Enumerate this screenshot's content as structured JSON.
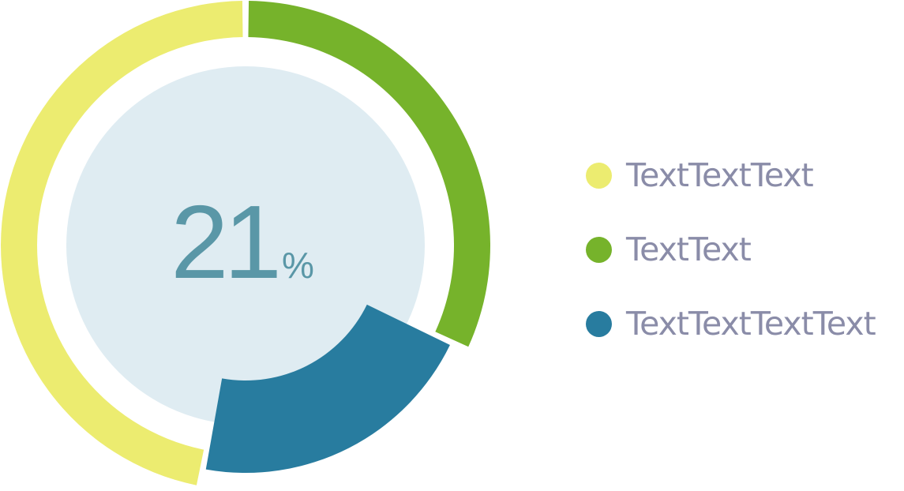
{
  "chart_data": {
    "type": "pie",
    "title": "",
    "center_label": {
      "value": "21",
      "unit": "%"
    },
    "categories": [
      "TextTextText",
      "TextText",
      "TextTextTextText"
    ],
    "values": [
      0.47,
      0.32,
      0.21
    ],
    "colors": [
      "#ecec70",
      "#76b32b",
      "#287c9f"
    ],
    "start_category": "TextText",
    "direction": "clockwise",
    "legend_position": "right",
    "center_color": "#5a97a7",
    "center_fill": "#dfecf2"
  },
  "legend": {
    "items": [
      {
        "label": "TextTextText",
        "color": "#ecec70",
        "dot_icon": "circle-dot-icon"
      },
      {
        "label": "TextText",
        "color": "#76b32b",
        "dot_icon": "circle-dot-icon"
      },
      {
        "label": "TextTextTextText",
        "color": "#287c9f",
        "dot_icon": "circle-dot-icon"
      }
    ]
  }
}
